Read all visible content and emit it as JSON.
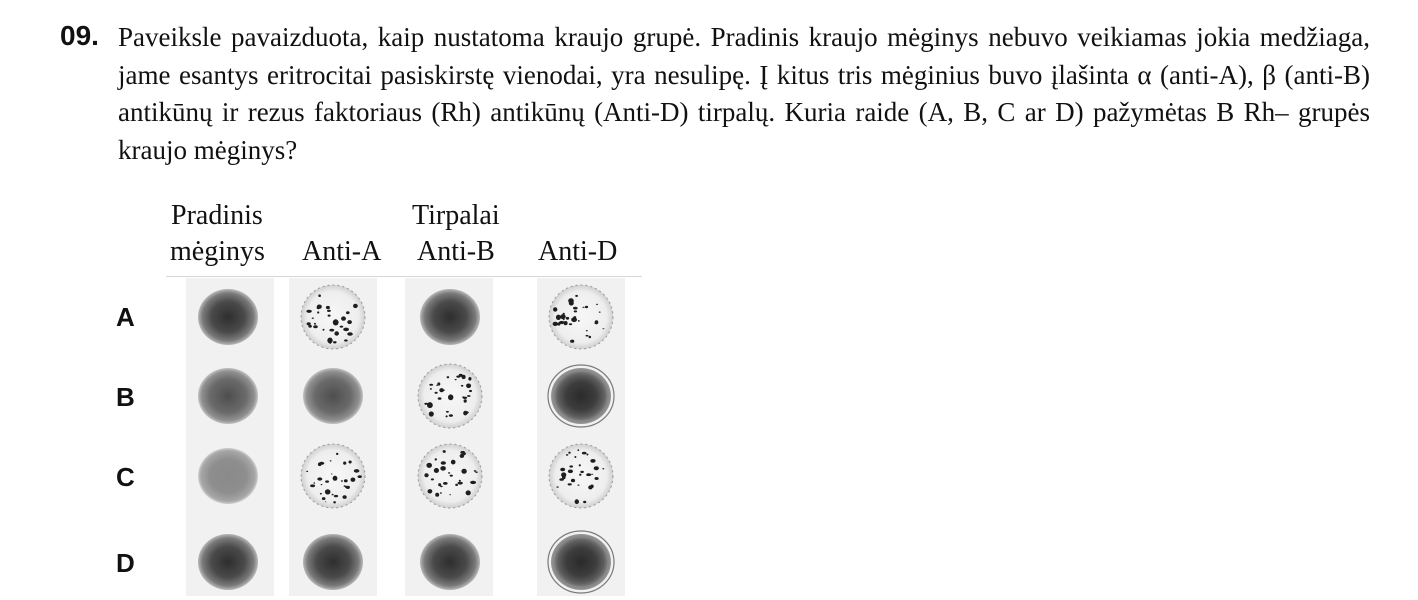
{
  "question": {
    "number": "09.",
    "text": "Paveiksle pavaizduota, kaip nustatoma kraujo grupė. Pradinis kraujo mėginys nebuvo veikiamas jokia medžiaga, jame esantys eritrocitai pasiskirstę vienodai, yra nesulipę. Į kitus tris mėginius buvo įlašinta α (anti-A), β (anti-B) antikūnų ir rezus faktoriaus (Rh) antikūnų (Anti-D) tirpalų. Kuria raide (A, B, C ar D) pažymėtas B Rh– grupės kraujo mėginys?"
  },
  "figure": {
    "header_pradinis_1": "Pradinis",
    "header_pradinis_2": "mėginys",
    "header_tirpalai": "Tirpalai",
    "columns": [
      "Anti-A",
      "Anti-B",
      "Anti-D"
    ],
    "rows": [
      "A",
      "B",
      "C",
      "D"
    ],
    "wells": [
      [
        "uniform",
        "agglutinated",
        "uniform",
        "agglutinated"
      ],
      [
        "uniform",
        "uniform",
        "agglutinated",
        "uniform-rings"
      ],
      [
        "uniform-light",
        "agglutinated",
        "agglutinated",
        "agglutinated"
      ],
      [
        "uniform",
        "uniform",
        "uniform",
        "uniform-rings"
      ]
    ]
  }
}
